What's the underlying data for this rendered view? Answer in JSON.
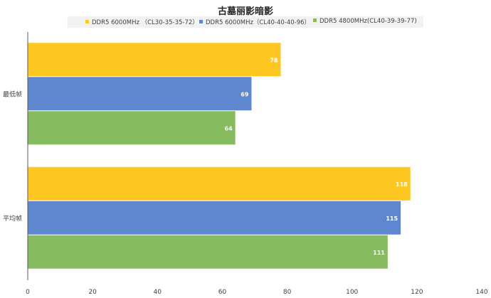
{
  "chart_data": {
    "type": "bar",
    "orientation": "horizontal",
    "title": "古墓丽影暗影",
    "categories": [
      "最低帧",
      "平均帧"
    ],
    "series": [
      {
        "name": "DDR5 6000MHz （CL30-35-35-72）",
        "color": "#FFC722",
        "values": [
          78,
          118
        ]
      },
      {
        "name": "DDR5 6000MHz（CL40-40-40-96）",
        "color": "#5F87CF",
        "values": [
          69,
          115
        ]
      },
      {
        "name": "DDR5 4800MHz(CL40-39-39-77)",
        "color": "#86BB5F",
        "values": [
          64,
          111
        ]
      }
    ],
    "xlim": [
      0,
      140
    ],
    "xticks": [
      0,
      20,
      40,
      60,
      80,
      100,
      120,
      140
    ],
    "legend_position": "top",
    "grid": false
  }
}
